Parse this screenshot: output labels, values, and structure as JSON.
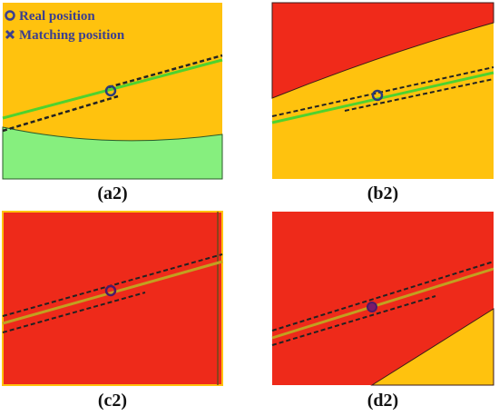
{
  "legend": {
    "items": [
      "Real position",
      "Matching position"
    ]
  },
  "panels": [
    {
      "label": "(a2)"
    },
    {
      "label": "(b2)"
    },
    {
      "label": "(c2)"
    },
    {
      "label": "(d2)"
    }
  ]
}
